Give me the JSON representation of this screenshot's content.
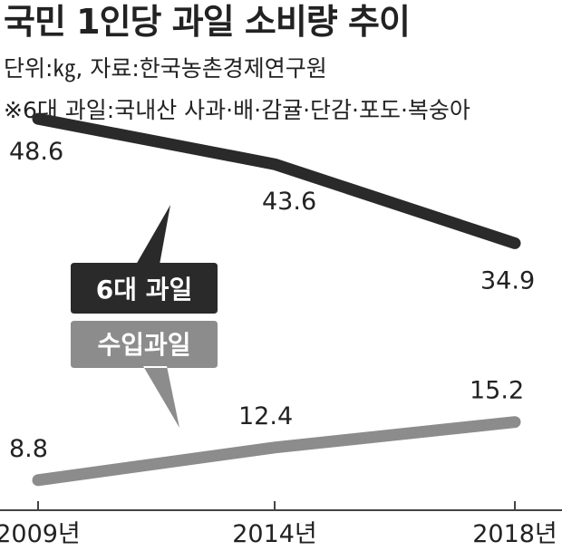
{
  "header": {
    "title": "국민 1인당 과일 소비량 추이",
    "unit_source": "단위:㎏, 자료:한국농촌경제연구원",
    "note": "※6대 과일:국내산 사과·배·감귤·단감·포도·복숭아"
  },
  "colors": {
    "domestic": "#2a2a2a",
    "imported": "#8c8c8c",
    "axis": "#444444"
  },
  "chart_data": {
    "type": "line",
    "categories": [
      "2009년",
      "2014년",
      "2018년"
    ],
    "ylim": [
      0,
      55
    ],
    "grid": false,
    "series": [
      {
        "name": "6대 과일",
        "values": [
          48.6,
          43.6,
          34.9
        ],
        "value_labels": [
          "48.6",
          "43.6",
          "34.9"
        ]
      },
      {
        "name": "수입과일",
        "values": [
          8.8,
          12.4,
          15.2
        ],
        "value_labels": [
          "8.8",
          "12.4",
          "15.2"
        ]
      }
    ]
  }
}
